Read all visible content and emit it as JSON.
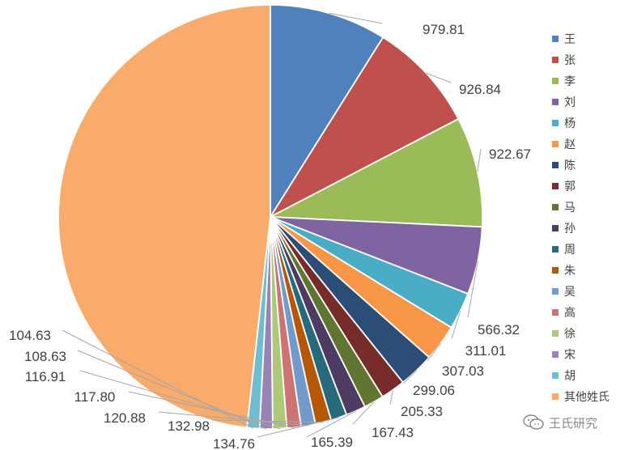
{
  "chart_data": {
    "type": "pie",
    "legend_position": "right",
    "title": "",
    "series": [
      {
        "name": "王",
        "value": 979.81,
        "label": "979.81",
        "color": "#4F81BD"
      },
      {
        "name": "张",
        "value": 926.84,
        "label": "926.84",
        "color": "#C0504D"
      },
      {
        "name": "李",
        "value": 922.67,
        "label": "922.67",
        "color": "#9BBB59"
      },
      {
        "name": "刘",
        "value": 566.32,
        "label": "566.32",
        "color": "#8064A2"
      },
      {
        "name": "杨",
        "value": 311.01,
        "label": "311.01",
        "color": "#4BACC6"
      },
      {
        "name": "赵",
        "value": 307.03,
        "label": "307.03",
        "color": "#F79646"
      },
      {
        "name": "陈",
        "value": 299.06,
        "label": "299.06",
        "color": "#2C4D75"
      },
      {
        "name": "郭",
        "value": 205.33,
        "label": "205.33",
        "color": "#772C2A"
      },
      {
        "name": "马",
        "value": 167.43,
        "label": "167.43",
        "color": "#5F7530"
      },
      {
        "name": "孙",
        "value": 165.39,
        "label": "165.39",
        "color": "#4D3B62"
      },
      {
        "name": "周",
        "value": 134.76,
        "label": "134.76",
        "color": "#276A7C"
      },
      {
        "name": "朱",
        "value": 132.98,
        "label": "132.98",
        "color": "#B65708"
      },
      {
        "name": "吴",
        "value": 120.88,
        "label": "120.88",
        "color": "#729ACA"
      },
      {
        "name": "高",
        "value": 117.8,
        "label": "117.80",
        "color": "#CD7371"
      },
      {
        "name": "徐",
        "value": 116.91,
        "label": "116.91",
        "color": "#AFC97A"
      },
      {
        "name": "宋",
        "value": 108.63,
        "label": "108.63",
        "color": "#9983B5"
      },
      {
        "name": "胡",
        "value": 104.63,
        "label": "104.63",
        "color": "#6FBDD1"
      },
      {
        "name": "其他姓氏",
        "value": 5300,
        "label": "",
        "color": "#F9AB6B"
      }
    ]
  },
  "watermark": {
    "text": "王氏研究",
    "icon": "wechat-icon"
  }
}
